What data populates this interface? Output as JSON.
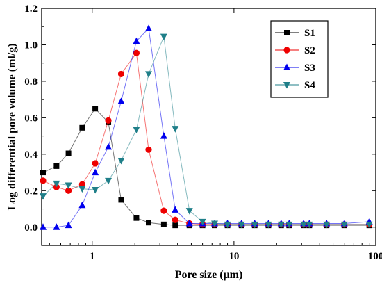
{
  "chart_data": {
    "type": "line",
    "title": "",
    "xlabel": "Pore size (μm)",
    "ylabel": "Log differential pore volume (ml/g)",
    "xscale": "log",
    "xlim": [
      0.44,
      100
    ],
    "ylim": [
      -0.1,
      1.2
    ],
    "xticks": [
      1,
      10,
      100
    ],
    "yticks": [
      0.0,
      0.2,
      0.4,
      0.6,
      0.8,
      1.0,
      1.2
    ],
    "grid": false,
    "legend": "top-right",
    "series": [
      {
        "name": "S1",
        "marker": "square",
        "color": "#000000",
        "line_color": "#000000",
        "x": [
          0.45,
          0.56,
          0.68,
          0.85,
          1.05,
          1.3,
          1.6,
          2.05,
          2.5,
          3.2,
          3.85,
          4.85,
          6.0,
          7.3,
          9.0,
          11.3,
          14.0,
          17.5,
          21.5,
          24.5,
          31.0,
          34.0,
          45.0,
          60.0,
          90.0
        ],
        "y": [
          0.3,
          0.335,
          0.405,
          0.545,
          0.65,
          0.575,
          0.15,
          0.05,
          0.025,
          0.015,
          0.01,
          0.01,
          0.01,
          0.01,
          0.01,
          0.01,
          0.01,
          0.01,
          0.01,
          0.01,
          0.01,
          0.01,
          0.01,
          0.01,
          0.01
        ]
      },
      {
        "name": "S2",
        "marker": "circle",
        "color": "#ee0000",
        "line_color": "#ee0000",
        "x": [
          0.45,
          0.56,
          0.68,
          0.85,
          1.05,
          1.3,
          1.6,
          2.05,
          2.5,
          3.2,
          3.85,
          4.85,
          6.0,
          7.3,
          9.0,
          11.3,
          14.0,
          17.5,
          21.5,
          24.5,
          31.0,
          34.0,
          45.0,
          60.0,
          90.0
        ],
        "y": [
          0.255,
          0.22,
          0.2,
          0.235,
          0.35,
          0.585,
          0.84,
          0.955,
          0.425,
          0.09,
          0.04,
          0.02,
          0.015,
          0.015,
          0.015,
          0.015,
          0.015,
          0.015,
          0.015,
          0.015,
          0.015,
          0.015,
          0.015,
          0.015,
          0.015
        ]
      },
      {
        "name": "S3",
        "marker": "triangle-up",
        "color": "#0000ee",
        "line_color": "#0000ee",
        "x": [
          0.45,
          0.56,
          0.68,
          0.85,
          1.05,
          1.3,
          1.6,
          2.05,
          2.5,
          3.2,
          3.85,
          4.85,
          6.0,
          7.3,
          9.0,
          11.3,
          14.0,
          17.5,
          21.5,
          24.5,
          31.0,
          34.0,
          45.0,
          60.0,
          90.0
        ],
        "y": [
          0.0,
          0.0,
          0.01,
          0.12,
          0.3,
          0.44,
          0.69,
          1.02,
          1.09,
          0.5,
          0.095,
          0.02,
          0.02,
          0.02,
          0.02,
          0.02,
          0.02,
          0.02,
          0.02,
          0.02,
          0.02,
          0.02,
          0.02,
          0.02,
          0.03
        ]
      },
      {
        "name": "S4",
        "marker": "triangle-down",
        "color": "#1f7f89",
        "line_color": "#1f7f89",
        "x": [
          0.45,
          0.56,
          0.68,
          0.85,
          1.05,
          1.3,
          1.6,
          2.05,
          2.5,
          3.2,
          3.85,
          4.85,
          6.0,
          7.3,
          9.0,
          11.3,
          14.0,
          17.5,
          21.5,
          24.5,
          31.0,
          34.0,
          45.0,
          60.0,
          90.0
        ],
        "y": [
          0.17,
          0.24,
          0.23,
          0.21,
          0.205,
          0.255,
          0.365,
          0.535,
          0.84,
          1.045,
          0.54,
          0.09,
          0.03,
          0.02,
          0.015,
          0.015,
          0.015,
          0.015,
          0.015,
          0.015,
          0.015,
          0.015,
          0.015,
          0.015,
          0.015
        ]
      }
    ]
  }
}
